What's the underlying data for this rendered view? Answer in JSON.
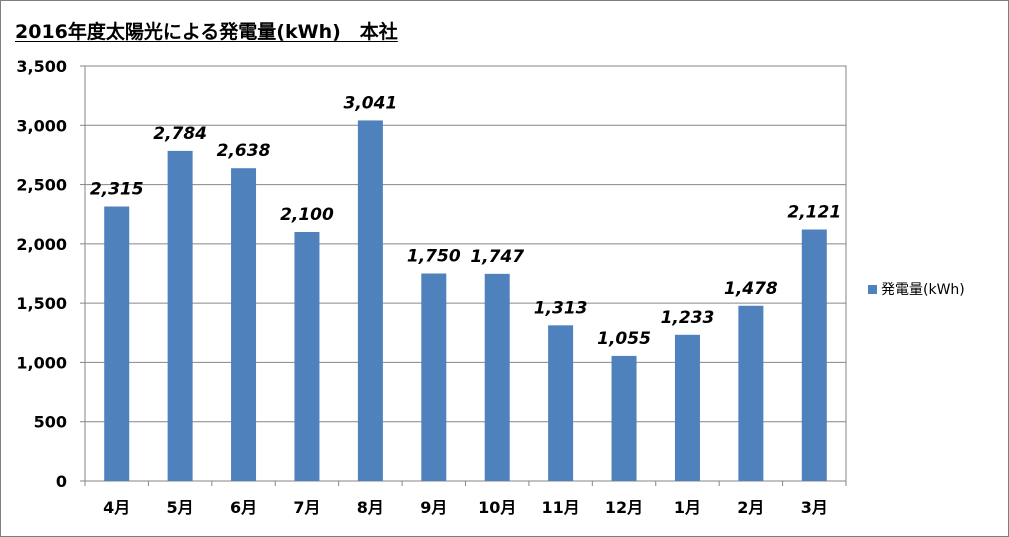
{
  "chart_data": {
    "type": "bar",
    "title": "2016年度太陽光による発電量(kWh)　本社",
    "categories": [
      "4月",
      "5月",
      "6月",
      "7月",
      "8月",
      "9月",
      "10月",
      "11月",
      "12月",
      "1月",
      "2月",
      "3月"
    ],
    "series": [
      {
        "name": "発電量(kWh)",
        "values": [
          2315,
          2784,
          2638,
          2100,
          3041,
          1750,
          1747,
          1313,
          1055,
          1233,
          1478,
          2121
        ],
        "labels": [
          "2,315",
          "2,784",
          "2,638",
          "2,100",
          "3,041",
          "1,750",
          "1,747",
          "1,313",
          "1,055",
          "1,233",
          "1,478",
          "2,121"
        ],
        "color": "#4f81bd"
      }
    ],
    "ylim": [
      0,
      3500
    ],
    "yticks": [
      0,
      500,
      1000,
      1500,
      2000,
      2500,
      3000,
      3500
    ],
    "ytick_labels": [
      "0",
      "500",
      "1,000",
      "1,500",
      "2,000",
      "2,500",
      "3,000",
      "3,500"
    ],
    "grid": true,
    "legend_position": "right",
    "xlabel": "",
    "ylabel": ""
  }
}
